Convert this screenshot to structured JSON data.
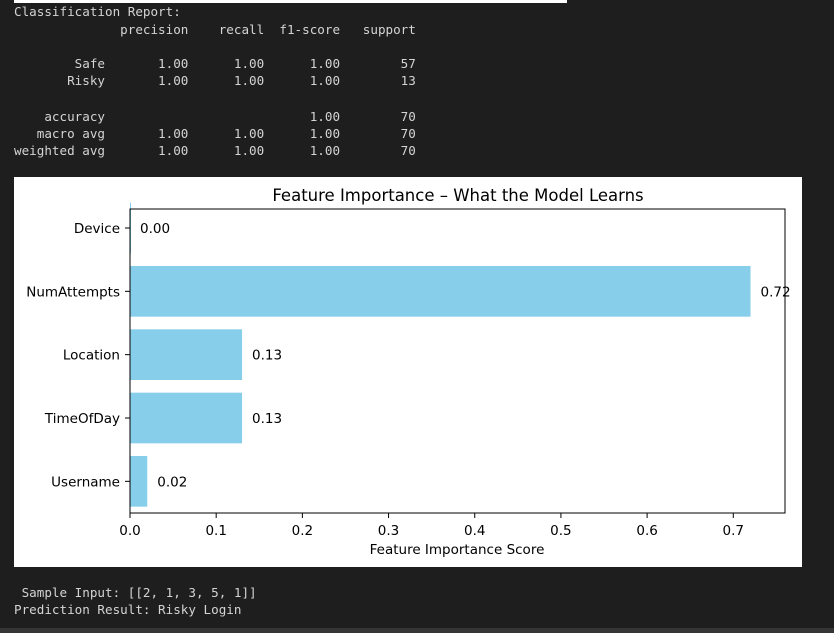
{
  "report": {
    "title": "Classification Report:",
    "header": "              precision    recall  f1-score   support",
    "rows": [
      "        Safe       1.00      1.00      1.00        57",
      "       Risky       1.00      1.00      1.00        13",
      "",
      "    accuracy                           1.00        70",
      "   macro avg       1.00      1.00      1.00        70",
      "weighted avg       1.00      1.00      1.00        70"
    ]
  },
  "chart_data": {
    "type": "bar",
    "orientation": "horizontal",
    "title": "Feature Importance – What the Model Learns",
    "xlabel": "Feature Importance Score",
    "ylabel": "",
    "categories": [
      "Username",
      "TimeOfDay",
      "Location",
      "NumAttempts",
      "Device"
    ],
    "values": [
      0.02,
      0.13,
      0.13,
      0.72,
      0.0
    ],
    "value_labels": [
      "0.02",
      "0.13",
      "0.13",
      "0.72",
      "0.00"
    ],
    "xlim": [
      0,
      0.76
    ],
    "xticks": [
      "0.0",
      "0.1",
      "0.2",
      "0.3",
      "0.4",
      "0.5",
      "0.6",
      "0.7"
    ],
    "bar_color": "#87ceeb",
    "grid": false,
    "legend": false
  },
  "output": {
    "sample_input": " Sample Input: [[2, 1, 3, 5, 1]]",
    "prediction": "Prediction Result: Risky Login"
  },
  "colors": {
    "background": "#1e1e1e",
    "console_text": "#d4d4d4",
    "figure_background": "#ffffff"
  }
}
